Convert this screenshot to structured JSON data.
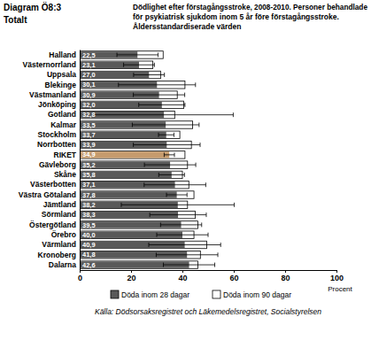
{
  "chart_data": {
    "type": "bar",
    "orientation": "horizontal",
    "annotations": [
      "Diagram Ö8:3"
    ],
    "subtitle": "Totalt",
    "title": [
      "Dödlighet efter förstagångsstroke, 2008-2010. Personer behandlade",
      "för psykiatrisk sjukdom inom 5 år före förstagångsstroke.",
      "Åldersstandardiserade värden"
    ],
    "source": "Källa: Dödsorsaksregistret och Läkemedelsregistret, Socialstyrelsen",
    "xlabel": "Procent",
    "categories": [
      "Halland",
      "Västernorrland",
      "Uppsala",
      "Blekinge",
      "Västmanland",
      "Jönköping",
      "Gotland",
      "Kalmar",
      "Stockholm",
      "Norrbotten",
      "RIKET",
      "Gävleborg",
      "Skåne",
      "Västerbotten",
      "Västra Götaland",
      "Jämtland",
      "Sörmland",
      "Östergötland",
      "Örebro",
      "Värmland",
      "Kronoberg",
      "Dalarna"
    ],
    "series": [
      {
        "name": "Döda inom 28 dagar",
        "color": "#595959",
        "colors": [
          "#595959",
          "#595959",
          "#595959",
          "#595959",
          "#595959",
          "#595959",
          "#595959",
          "#595959",
          "#595959",
          "#595959",
          "#c59b6d",
          "#595959",
          "#595959",
          "#595959",
          "#595959",
          "#595959",
          "#595959",
          "#595959",
          "#595959",
          "#595959",
          "#595959",
          "#595959"
        ],
        "values": [
          22.5,
          23.1,
          27.0,
          30.1,
          30.9,
          32.0,
          32.8,
          33.5,
          33.7,
          33.9,
          34.9,
          35.2,
          35.8,
          37.1,
          37.8,
          38.2,
          38.3,
          39.5,
          40.0,
          40.9,
          41.8,
          42.6
        ],
        "value_labels": [
          "22,5",
          "23,1",
          "27,0",
          "30,1",
          "30,9",
          "32,0",
          "32,8",
          "33,5",
          "33,7",
          "33,9",
          "34,9",
          "35,2",
          "35,8",
          "37,1",
          "37,8",
          "38,2",
          "38,3",
          "39,5",
          "40,0",
          "40,9",
          "41,8",
          "42,6"
        ],
        "errors": [
          8,
          6,
          6,
          15,
          10,
          9,
          27,
          13,
          3,
          13,
          2,
          10,
          5,
          12,
          4,
          22,
          11,
          8,
          10,
          14,
          12,
          10
        ]
      },
      {
        "name": "Döda inom 90 dagar",
        "color": "#ffffff",
        "values": [
          32.5,
          28.5,
          31.5,
          41.0,
          38.0,
          40.5,
          37.0,
          44.0,
          39.0,
          43.5,
          41.0,
          42.0,
          40.0,
          42.5,
          44.5,
          42.0,
          45.0,
          46.0,
          44.5,
          49.5,
          47.0,
          46.0
        ]
      }
    ],
    "data_labels": true,
    "legend": "bottom",
    "grid": false,
    "xlim": [
      0,
      100
    ],
    "xticks": [
      0,
      20,
      40,
      60,
      80,
      100
    ]
  }
}
